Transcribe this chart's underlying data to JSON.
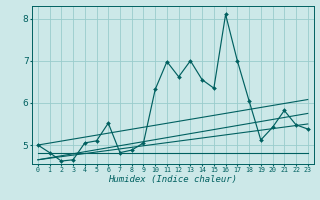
{
  "title": "",
  "xlabel": "Humidex (Indice chaleur)",
  "bg_color": "#cce8e8",
  "grid_color": "#99cccc",
  "line_color": "#006060",
  "xlim": [
    -0.5,
    23.5
  ],
  "ylim": [
    4.55,
    8.3
  ],
  "yticks": [
    5,
    6,
    7,
    8
  ],
  "xticks": [
    0,
    1,
    2,
    3,
    4,
    5,
    6,
    7,
    8,
    9,
    10,
    11,
    12,
    13,
    14,
    15,
    16,
    17,
    18,
    19,
    20,
    21,
    22,
    23
  ],
  "main_line_x": [
    0,
    1,
    2,
    3,
    4,
    5,
    6,
    7,
    8,
    9,
    10,
    11,
    12,
    13,
    14,
    15,
    16,
    17,
    18,
    19,
    20,
    21,
    22,
    23
  ],
  "main_line_y": [
    5.0,
    4.82,
    4.62,
    4.65,
    5.05,
    5.1,
    5.52,
    4.82,
    4.88,
    5.05,
    6.32,
    6.98,
    6.62,
    7.0,
    6.55,
    6.35,
    8.1,
    7.0,
    6.05,
    5.12,
    5.42,
    5.82,
    5.48,
    5.38
  ],
  "band_lines": [
    {
      "x": [
        0,
        23
      ],
      "y": [
        4.82,
        4.82
      ]
    },
    {
      "x": [
        0,
        23
      ],
      "y": [
        4.65,
        5.5
      ]
    },
    {
      "x": [
        0,
        23
      ],
      "y": [
        4.65,
        5.75
      ]
    },
    {
      "x": [
        0,
        23
      ],
      "y": [
        5.0,
        6.08
      ]
    }
  ]
}
